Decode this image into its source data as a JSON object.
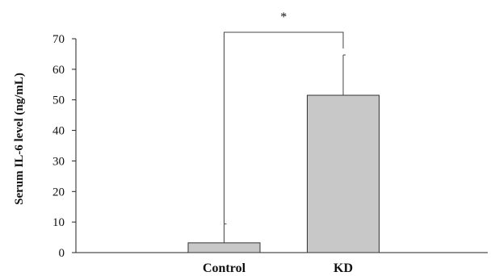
{
  "chart_data": {
    "type": "bar",
    "ylabel": "Serum IL-6 level (ng/mL)",
    "categories": [
      "Control",
      "KD"
    ],
    "values": [
      3.2,
      51.5
    ],
    "errors": [
      6.2,
      13.2
    ],
    "ylim": [
      0,
      70
    ],
    "yticks": [
      "0",
      "10",
      "20",
      "30",
      "40",
      "50",
      "60",
      "70"
    ],
    "bar_color": "#c8c8c8",
    "bar_edge_color": "#333333",
    "grid": false,
    "annotations": [
      {
        "text": "*",
        "between": [
          "Control",
          "KD"
        ]
      }
    ]
  }
}
